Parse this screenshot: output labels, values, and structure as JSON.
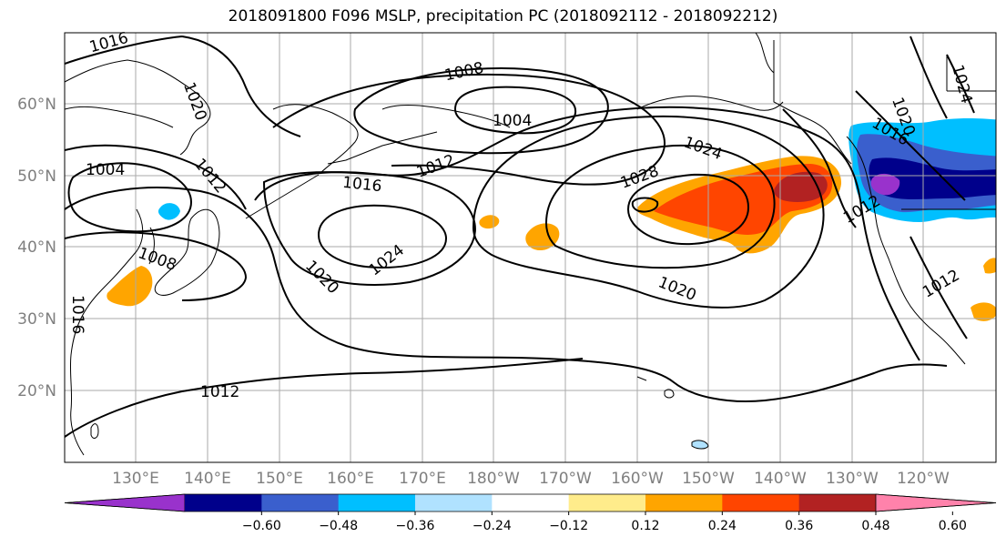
{
  "title": "2018091800 F096 MSLP, precipitation PC (2018092112 - 2018092212)",
  "lat_labels": [
    "60°N",
    "50°N",
    "40°N",
    "30°N",
    "20°N"
  ],
  "lon_labels": [
    "130°E",
    "140°E",
    "150°E",
    "160°E",
    "170°E",
    "180°W",
    "170°W",
    "160°W",
    "150°W",
    "140°W",
    "130°W",
    "120°W"
  ],
  "contour_labels": {
    "c1016_nw": "1016",
    "c1008_top": "1008",
    "c1020_nw": "1020",
    "c1004_top": "1004",
    "c1004_left": "1004",
    "c1012_left": "1012",
    "c1012_mid": "1012",
    "c1016_mid": "1016",
    "c1028": "1028",
    "c1024_right": "1024",
    "c1024_mid": "1024",
    "c1020_mid": "1020",
    "c1008_left": "1008",
    "c1020_low": "1020",
    "c1012_bottom": "1012",
    "c1016_left": "1016",
    "c1020_ne": "1020",
    "c1024_ne": "1024",
    "c1016_ne": "1016",
    "c1012_ne": "1012",
    "c1012_e": "1012"
  },
  "colorbar": {
    "colors": [
      "#9932cc",
      "#00008b",
      "#3a5fcd",
      "#00bfff",
      "#b0e2ff",
      "#ffffff",
      "#ffec8b",
      "#ffa500",
      "#ff4500",
      "#b22222",
      "#ff82ab"
    ],
    "ticks": [
      "−0.60",
      "−0.48",
      "−0.36",
      "−0.24",
      "−0.12",
      "0.12",
      "0.24",
      "0.36",
      "0.48",
      "0.60"
    ]
  },
  "colors": {
    "orange": "#ffa500",
    "red_orange": "#ff4500",
    "dark_red": "#b22222",
    "light_yellow": "#ffec8b",
    "deep_sky_blue": "#00bfff",
    "royal_blue": "#3a5fcd",
    "navy": "#00008b",
    "purple": "#9932cc",
    "grid": "#aaaaaa"
  }
}
